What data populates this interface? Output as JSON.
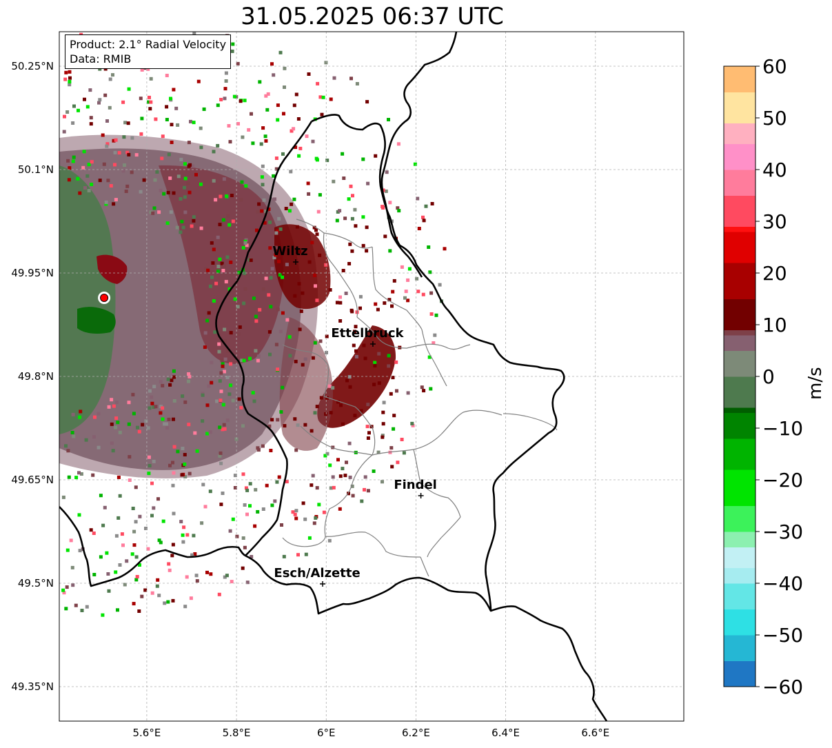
{
  "title": "31.05.2025 06:37 UTC",
  "info": {
    "product": "Product: 2.1° Radial Velocity",
    "data": "Data: RMIB"
  },
  "map": {
    "lat_ticks": [
      "50.25°N",
      "50.1°N",
      "49.95°N",
      "49.8°N",
      "49.65°N",
      "49.5°N",
      "49.35°N"
    ],
    "lat_values": [
      50.25,
      50.1,
      49.95,
      49.8,
      49.65,
      49.5,
      49.35
    ],
    "lon_ticks": [
      "5.6°E",
      "5.8°E",
      "6°E",
      "6.2°E",
      "6.4°E",
      "6.6°E"
    ],
    "lon_values": [
      5.6,
      5.8,
      6.0,
      6.2,
      6.4,
      6.6
    ],
    "lon_range": [
      5.405,
      6.797
    ],
    "lat_range": [
      49.3,
      50.3
    ],
    "radar_site": {
      "lon": 5.505,
      "lat": 49.914
    },
    "cities": [
      {
        "name": "Wiltz",
        "lon": 5.932,
        "lat": 49.966
      },
      {
        "name": "Ettelbruck",
        "lon": 6.104,
        "lat": 49.847
      },
      {
        "name": "Findel",
        "lon": 6.211,
        "lat": 49.627
      },
      {
        "name": "Esch/Alzette",
        "lon": 5.992,
        "lat": 49.499
      }
    ]
  },
  "colorbar": {
    "unit": "m/s",
    "tick_labels": [
      "60",
      "50",
      "40",
      "30",
      "20",
      "10",
      "0",
      "−10",
      "−20",
      "−30",
      "−40",
      "−50",
      "−60"
    ],
    "tick_values": [
      60,
      50,
      40,
      30,
      20,
      10,
      0,
      -10,
      -20,
      -30,
      -40,
      -50,
      -60
    ],
    "range": [
      -60,
      60
    ],
    "stops": [
      {
        "v": -60,
        "c": "#1f77c4"
      },
      {
        "v": -55,
        "c": "#25b7d4"
      },
      {
        "v": -50,
        "c": "#2ee0e4"
      },
      {
        "v": -45,
        "c": "#63e6e6"
      },
      {
        "v": -40,
        "c": "#a6ecf0"
      },
      {
        "v": -37,
        "c": "#c2f0f4"
      },
      {
        "v": -33,
        "c": "#8cf0b0"
      },
      {
        "v": -30,
        "c": "#3cf25a"
      },
      {
        "v": -25,
        "c": "#00e400"
      },
      {
        "v": -18,
        "c": "#00b400"
      },
      {
        "v": -12,
        "c": "#008400"
      },
      {
        "v": -7,
        "c": "#005e00"
      },
      {
        "v": -6,
        "c": "#4e7a4e"
      },
      {
        "v": 0,
        "c": "#7d8a78"
      },
      {
        "v": 5,
        "c": "#866070"
      },
      {
        "v": 8,
        "c": "#7e4048"
      },
      {
        "v": 9,
        "c": "#720000"
      },
      {
        "v": 15,
        "c": "#a80000"
      },
      {
        "v": 22,
        "c": "#e00000"
      },
      {
        "v": 28,
        "c": "#ff1010"
      },
      {
        "v": 29,
        "c": "#ff4a60"
      },
      {
        "v": 35,
        "c": "#ff7c9c"
      },
      {
        "v": 40,
        "c": "#ff90c8"
      },
      {
        "v": 45,
        "c": "#ffb0c0"
      },
      {
        "v": 49,
        "c": "#ffe4a0"
      },
      {
        "v": 55,
        "c": "#ffbc72"
      },
      {
        "v": 60,
        "c": "#ff9a50"
      }
    ]
  },
  "colors": {
    "border": "#000000",
    "cantons": "#7f7f7f",
    "grid": "#b0b0b0",
    "radar_site": "#ff0000"
  }
}
